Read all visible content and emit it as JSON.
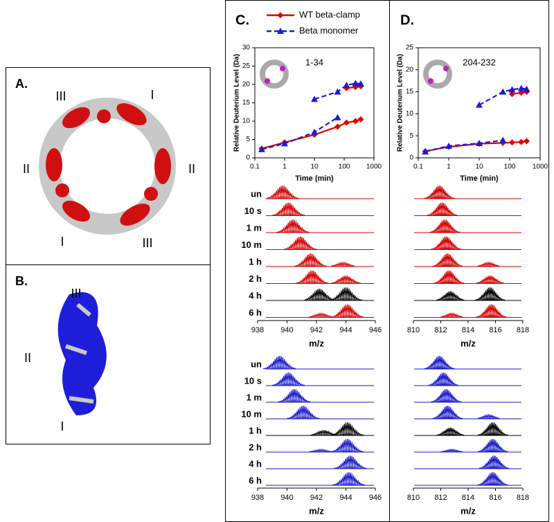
{
  "panels": {
    "a": {
      "label": "A.",
      "roman": [
        "III",
        "I",
        "II",
        "II",
        "I",
        "III"
      ]
    },
    "b": {
      "label": "B.",
      "roman": [
        "III",
        "II",
        "I"
      ]
    },
    "c": {
      "label": "C."
    },
    "d": {
      "label": "D."
    }
  },
  "chart_data": [
    {
      "type": "line",
      "title": "1-34",
      "x_label": "Time (min)",
      "y_label": "Relative Deuterium Level (Da)",
      "x": [
        0.17,
        1,
        10,
        60,
        120,
        240,
        360
      ],
      "xscale": "log",
      "xlim": [
        0.1,
        1000
      ],
      "xticks": [
        0.1,
        1,
        10,
        100,
        1000
      ],
      "ylim": [
        0,
        30
      ],
      "yticks": [
        0,
        5,
        10,
        15,
        20,
        25,
        30
      ],
      "series": [
        {
          "name": "WT beta-clamp",
          "color": "#e00000",
          "dashed": false,
          "marker": "diamond",
          "values": [
            2.5,
            4.2,
            6.3,
            8.5,
            9.6,
            10,
            10.5
          ],
          "values_heavy": [
            null,
            null,
            null,
            null,
            19,
            19.3,
            19.5
          ]
        },
        {
          "name": "Beta monomer",
          "color": "#1a1adc",
          "dashed": true,
          "marker": "triangle",
          "values": [
            2.3,
            3.9,
            7,
            11,
            null,
            null,
            null
          ],
          "values_heavy": [
            null,
            null,
            16,
            18,
            19.8,
            20.3,
            20.2
          ]
        }
      ]
    },
    {
      "type": "line",
      "title": "204-232",
      "x_label": "Time (min)",
      "y_label": "Relative Deuterium Level (Da)",
      "x": [
        0.17,
        1,
        10,
        60,
        120,
        240,
        360
      ],
      "xscale": "log",
      "xlim": [
        0.1,
        1000
      ],
      "xticks": [
        0.1,
        1,
        10,
        100,
        1000
      ],
      "ylim": [
        0,
        25
      ],
      "yticks": [
        0,
        5,
        10,
        15,
        20,
        25
      ],
      "series": [
        {
          "color": "#e00000",
          "dashed": false,
          "marker": "diamond",
          "values": [
            1.5,
            2.5,
            3.2,
            3.4,
            3.5,
            3.6,
            3.8
          ],
          "values_heavy": [
            null,
            null,
            null,
            null,
            14.5,
            14.8,
            15
          ]
        },
        {
          "color": "#1a1adc",
          "dashed": true,
          "marker": "triangle",
          "values": [
            1.4,
            2.7,
            3.3,
            4,
            null,
            null,
            null
          ],
          "values_heavy": [
            null,
            null,
            12,
            15,
            15.5,
            15.8,
            15.6
          ]
        }
      ]
    }
  ],
  "spectra": [
    {
      "xlabel": "m/z",
      "xlim": [
        938,
        946
      ],
      "xticks": [
        938,
        940,
        942,
        944,
        946
      ],
      "rows": [
        {
          "label": "un",
          "color": "#d40000",
          "peaks": [
            [
              939.7,
              1
            ]
          ]
        },
        {
          "label": "10 s",
          "color": "#d40000",
          "peaks": [
            [
              940.1,
              1
            ]
          ]
        },
        {
          "label": "1 m",
          "color": "#d40000",
          "peaks": [
            [
              940.4,
              1
            ]
          ]
        },
        {
          "label": "10 m",
          "color": "#d40000",
          "peaks": [
            [
              940.9,
              1
            ]
          ]
        },
        {
          "label": "1 h",
          "color": "#d40000",
          "peaks": [
            [
              941.6,
              1
            ],
            [
              943.8,
              0.3
            ]
          ]
        },
        {
          "label": "2 h",
          "color": "#d40000",
          "peaks": [
            [
              941.7,
              1
            ],
            [
              944,
              0.6
            ]
          ]
        },
        {
          "label": "4 h",
          "color": "#000000",
          "peaks": [
            [
              942.2,
              0.9
            ],
            [
              944,
              1
            ]
          ]
        },
        {
          "label": "6 h",
          "color": "#d40000",
          "peaks": [
            [
              942.3,
              0.3
            ],
            [
              944.1,
              1
            ]
          ]
        }
      ]
    },
    {
      "xlabel": "m/z",
      "xlim": [
        938,
        946
      ],
      "xticks": [
        938,
        940,
        942,
        944,
        946
      ],
      "rows": [
        {
          "label": "un",
          "color": "#1a1acc",
          "peaks": [
            [
              939.5,
              1
            ]
          ]
        },
        {
          "label": "10 s",
          "color": "#1a1acc",
          "peaks": [
            [
              940.1,
              1
            ]
          ]
        },
        {
          "label": "1 m",
          "color": "#1a1acc",
          "peaks": [
            [
              940.5,
              1
            ]
          ]
        },
        {
          "label": "10 m",
          "color": "#1a1acc",
          "peaks": [
            [
              941.1,
              1
            ]
          ]
        },
        {
          "label": "1 h",
          "color": "#000000",
          "peaks": [
            [
              942.5,
              0.4
            ],
            [
              944.1,
              1
            ]
          ]
        },
        {
          "label": "2 h",
          "color": "#1a1acc",
          "peaks": [
            [
              942.3,
              0.2
            ],
            [
              944.1,
              1
            ]
          ]
        },
        {
          "label": "4 h",
          "color": "#1a1acc",
          "peaks": [
            [
              944.3,
              1
            ]
          ]
        },
        {
          "label": "6 h",
          "color": "#1a1acc",
          "peaks": [
            [
              944.2,
              1
            ]
          ]
        }
      ]
    },
    {
      "xlabel": "m/z",
      "xlim": [
        810,
        818
      ],
      "xticks": [
        810,
        812,
        814,
        816,
        818
      ],
      "rows": [
        {
          "color": "#d40000",
          "peaks": [
            [
              811.9,
              1
            ]
          ]
        },
        {
          "color": "#d40000",
          "peaks": [
            [
              812.1,
              1
            ]
          ]
        },
        {
          "color": "#d40000",
          "peaks": [
            [
              812.3,
              1
            ]
          ]
        },
        {
          "color": "#d40000",
          "peaks": [
            [
              812.4,
              1
            ]
          ]
        },
        {
          "color": "#d40000",
          "peaks": [
            [
              812.5,
              1
            ],
            [
              815.5,
              0.3
            ]
          ]
        },
        {
          "color": "#d40000",
          "peaks": [
            [
              812.6,
              1
            ],
            [
              815.6,
              0.6
            ]
          ]
        },
        {
          "color": "#000000",
          "peaks": [
            [
              812.7,
              0.7
            ],
            [
              815.6,
              1
            ]
          ]
        },
        {
          "color": "#d40000",
          "peaks": [
            [
              812.8,
              0.3
            ],
            [
              815.7,
              1
            ]
          ]
        }
      ]
    },
    {
      "xlabel": "m/z",
      "xlim": [
        810,
        818
      ],
      "xticks": [
        810,
        812,
        814,
        816,
        818
      ],
      "rows": [
        {
          "color": "#1a1acc",
          "peaks": [
            [
              811.9,
              1
            ]
          ]
        },
        {
          "color": "#1a1acc",
          "peaks": [
            [
              812.2,
              1
            ]
          ]
        },
        {
          "color": "#1a1acc",
          "peaks": [
            [
              812.4,
              1
            ]
          ]
        },
        {
          "color": "#1a1acc",
          "peaks": [
            [
              812.5,
              1
            ],
            [
              815.5,
              0.3
            ]
          ]
        },
        {
          "color": "#000000",
          "peaks": [
            [
              812.7,
              0.6
            ],
            [
              815.8,
              1
            ]
          ]
        },
        {
          "color": "#1a1acc",
          "peaks": [
            [
              812.8,
              0.2
            ],
            [
              815.8,
              1
            ]
          ]
        },
        {
          "color": "#1a1acc",
          "peaks": [
            [
              815.9,
              1
            ]
          ]
        },
        {
          "color": "#1a1acc",
          "peaks": [
            [
              815.8,
              1
            ]
          ]
        }
      ]
    }
  ]
}
